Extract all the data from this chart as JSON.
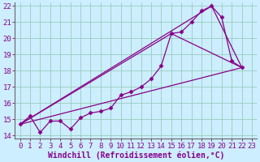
{
  "bg_color": "#cceeff",
  "line_color": "#880088",
  "grid_color": "#99ccbb",
  "xlabel": "Windchill (Refroidissement éolien,°C)",
  "xlim": [
    -0.5,
    23.5
  ],
  "ylim": [
    13.8,
    22.2
  ],
  "yticks": [
    14,
    15,
    16,
    17,
    18,
    19,
    20,
    21,
    22
  ],
  "xticks": [
    0,
    1,
    2,
    3,
    4,
    5,
    6,
    7,
    8,
    9,
    10,
    11,
    12,
    13,
    14,
    15,
    16,
    17,
    18,
    19,
    20,
    21,
    22,
    23
  ],
  "series": [
    {
      "x": [
        0,
        1,
        2,
        3,
        4,
        5,
        6,
        7,
        8,
        9,
        10,
        11,
        12,
        13,
        14,
        15,
        16,
        17,
        18,
        19,
        20,
        21,
        22
      ],
      "y": [
        14.7,
        15.2,
        14.2,
        14.9,
        14.9,
        14.4,
        15.1,
        15.4,
        15.5,
        15.7,
        16.5,
        16.7,
        17.0,
        17.5,
        18.3,
        20.3,
        20.4,
        21.0,
        21.7,
        22.0,
        21.3,
        18.6,
        18.2
      ],
      "has_marker": true
    },
    {
      "x": [
        0,
        22
      ],
      "y": [
        14.7,
        18.2
      ],
      "has_marker": false
    },
    {
      "x": [
        0,
        19,
        22
      ],
      "y": [
        14.7,
        22.0,
        18.2
      ],
      "has_marker": false
    },
    {
      "x": [
        0,
        15,
        22
      ],
      "y": [
        14.7,
        20.3,
        18.2
      ],
      "has_marker": false
    }
  ],
  "marker": "D",
  "marker_size": 2.5,
  "line_width": 0.9,
  "font_family": "monospace",
  "xlabel_fontsize": 7,
  "tick_fontsize": 6.5,
  "tick_color": "#880088",
  "axis_color": "#666666"
}
